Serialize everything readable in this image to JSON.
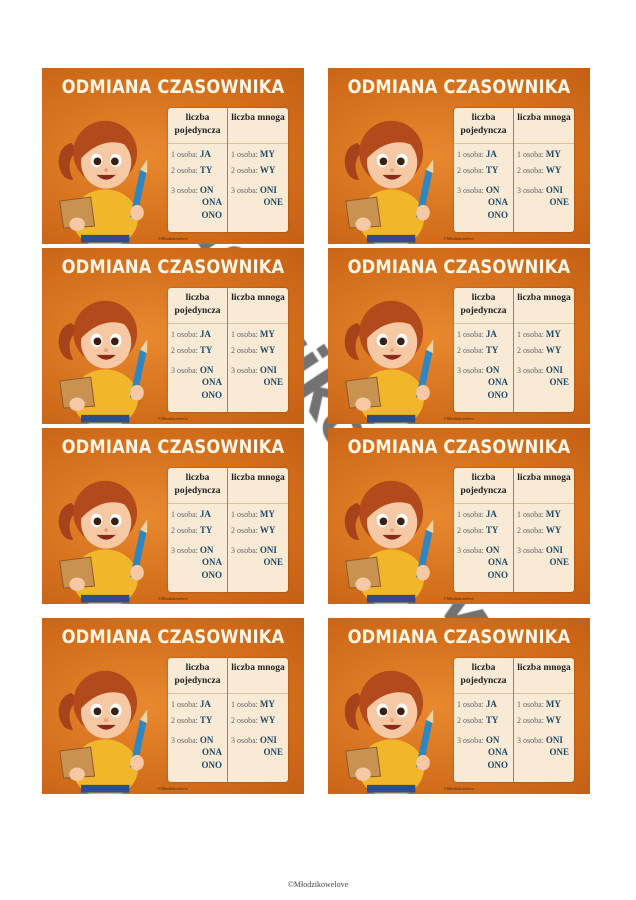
{
  "card": {
    "title": "ODMIANA CZASOWNIKA",
    "singular_header": "liczba pojedyncza",
    "plural_header": "liczba mnoga",
    "rows": [
      {
        "label": "1 osoba:",
        "singular": "JA",
        "plural": "MY"
      },
      {
        "label": "2 osoba:",
        "singular": "TY",
        "plural": "WY"
      },
      {
        "label": "3 osoba:",
        "singular": "ON",
        "singular_extra": [
          "ONA",
          "ONO"
        ],
        "plural": "ONI",
        "plural_extra": [
          "ONE"
        ]
      }
    ],
    "copyright": "©Młodzikowelove"
  },
  "card_count": 8,
  "watermark": "Młodzikowelove",
  "footer": "©Młodzikowelove",
  "colors": {
    "card_bg": "#d46f1c",
    "panel_bg": "#f8ead4",
    "pronoun": "#1f4a68"
  }
}
